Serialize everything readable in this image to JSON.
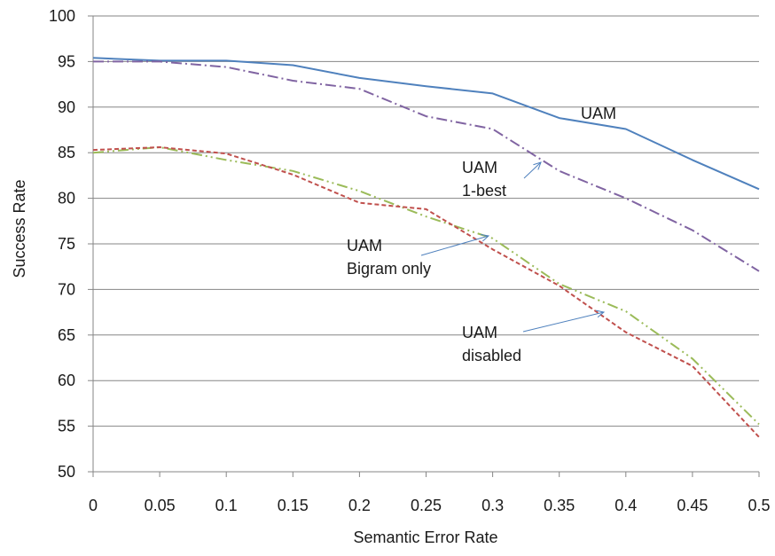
{
  "chart_data": {
    "type": "line",
    "xlabel": "Semantic Error Rate",
    "ylabel": "Success Rate",
    "xlim": [
      0,
      0.5
    ],
    "ylim": [
      50,
      100
    ],
    "x_ticks": [
      "0",
      "0.05",
      "0.1",
      "0.15",
      "0.2",
      "0.25",
      "0.3",
      "0.35",
      "0.4",
      "0.45",
      "0.5"
    ],
    "y_ticks": [
      "100",
      "95",
      "90",
      "85",
      "80",
      "75",
      "70",
      "65",
      "60",
      "55",
      "50"
    ],
    "grid": "horizontal",
    "x": [
      0,
      0.05,
      0.1,
      0.15,
      0.2,
      0.25,
      0.3,
      0.35,
      0.4,
      0.45,
      0.5
    ],
    "series": [
      {
        "values": [
          95.4,
          95.1,
          95.1,
          94.6,
          93.2,
          92.3,
          91.5,
          88.8,
          87.6,
          84.2,
          81.0
        ],
        "color": "#4f81bd",
        "dash": "solid"
      },
      {
        "values": [
          95.0,
          95.0,
          94.4,
          92.9,
          92.0,
          89.0,
          87.6,
          83.0,
          80.0,
          76.5,
          72.0
        ],
        "color": "#8064a2",
        "dash": "dashdot"
      },
      {
        "values": [
          85.0,
          85.6,
          84.2,
          83.0,
          80.8,
          78.0,
          75.6,
          70.6,
          67.6,
          62.4,
          55.2
        ],
        "color": "#9bbb59",
        "dash": "dashdotdot"
      },
      {
        "values": [
          85.3,
          85.6,
          84.9,
          82.6,
          79.5,
          78.8,
          74.4,
          70.4,
          65.3,
          61.6,
          53.8
        ],
        "color": "#c0504d",
        "dash": "dashed"
      }
    ],
    "annotations": [
      {
        "lines": [
          "UAM"
        ]
      },
      {
        "lines": [
          "UAM",
          "1-best"
        ]
      },
      {
        "lines": [
          "UAM",
          "Bigram only"
        ]
      },
      {
        "lines": [
          "UAM",
          "disabled"
        ]
      }
    ],
    "arrow_color": "#4f81bd"
  }
}
